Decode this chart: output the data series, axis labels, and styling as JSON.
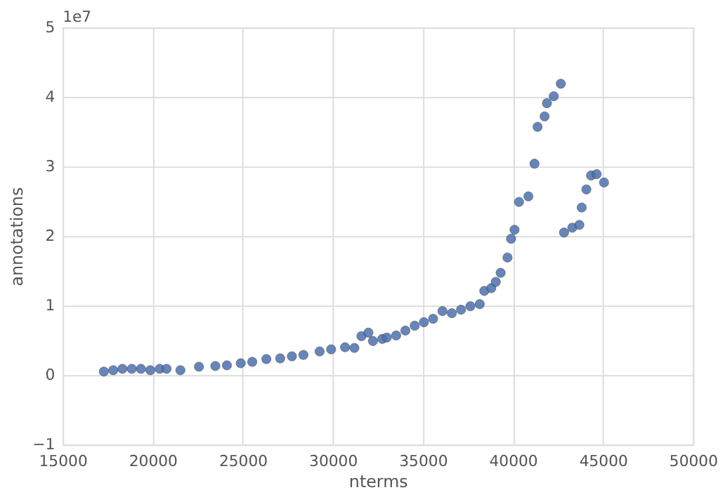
{
  "chart_data": {
    "type": "scatter",
    "xlabel": "nterms",
    "ylabel": "annotations",
    "annotations": [
      "1e7"
    ],
    "x": [
      17290,
      17810,
      18320,
      18840,
      19350,
      19870,
      20390,
      20770,
      21540,
      22570,
      23480,
      24120,
      24890,
      25530,
      26310,
      27080,
      27730,
      28370,
      29270,
      29910,
      30680,
      31200,
      31590,
      31980,
      32230,
      32750,
      33000,
      33520,
      34030,
      34550,
      35060,
      35570,
      36090,
      36610,
      37120,
      37640,
      38160,
      38410,
      38800,
      39050,
      39320,
      39700,
      39900,
      40090,
      40340,
      40860,
      41200,
      41370,
      41760,
      41890,
      42270,
      42660,
      42840,
      43300,
      43690,
      43820,
      44080,
      44340,
      44650,
      45060
    ],
    "values": [
      0.05,
      0.07,
      0.09,
      0.09,
      0.09,
      0.07,
      0.09,
      0.09,
      0.07,
      0.12,
      0.13,
      0.14,
      0.17,
      0.19,
      0.23,
      0.24,
      0.27,
      0.29,
      0.34,
      0.37,
      0.4,
      0.39,
      0.56,
      0.61,
      0.49,
      0.52,
      0.54,
      0.57,
      0.64,
      0.71,
      0.76,
      0.81,
      0.92,
      0.89,
      0.94,
      0.99,
      1.02,
      1.21,
      1.25,
      1.34,
      1.47,
      1.69,
      1.96,
      2.09,
      2.49,
      2.57,
      3.04,
      3.57,
      3.72,
      3.91,
      4.01,
      4.19,
      2.05,
      2.12,
      2.16,
      2.41,
      2.67,
      2.87,
      2.89,
      2.77
    ],
    "color": "#4c72b0",
    "marker": "circle",
    "xlim": [
      15000,
      50000
    ],
    "xticks": [
      15000,
      20000,
      25000,
      30000,
      35000,
      40000,
      45000,
      50000
    ],
    "ylim": [
      -1,
      5
    ],
    "yticks": [
      -1,
      0,
      1,
      2,
      3,
      4,
      5
    ],
    "grid": true
  }
}
